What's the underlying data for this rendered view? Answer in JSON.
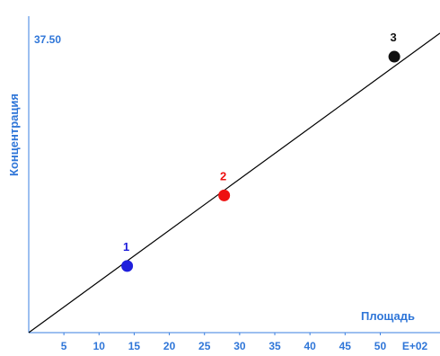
{
  "chart_data": {
    "type": "line",
    "ylabel": "Концентрация",
    "xlabel": "Площадь",
    "y_top_label": "37.50",
    "x_ticks": [
      "5",
      "10",
      "15",
      "20",
      "25",
      "30",
      "35",
      "40",
      "45",
      "50"
    ],
    "x_exponent_label": "E+02",
    "xlim": [
      0,
      58.5
    ],
    "ylim": [
      0,
      37.5
    ],
    "line": {
      "x": [
        0,
        58.5
      ],
      "y": [
        0,
        38.2
      ]
    },
    "points": [
      {
        "label": "1",
        "x": 14.0,
        "y": 8.5,
        "color": "#1f1fdc"
      },
      {
        "label": "2",
        "x": 27.8,
        "y": 17.5,
        "color": "#ee1111"
      },
      {
        "label": "3",
        "x": 52.0,
        "y": 35.2,
        "color": "#111111"
      }
    ],
    "colors": {
      "axis": "#3a7fe0",
      "label": "#2f76d8",
      "line": "#000000"
    }
  }
}
